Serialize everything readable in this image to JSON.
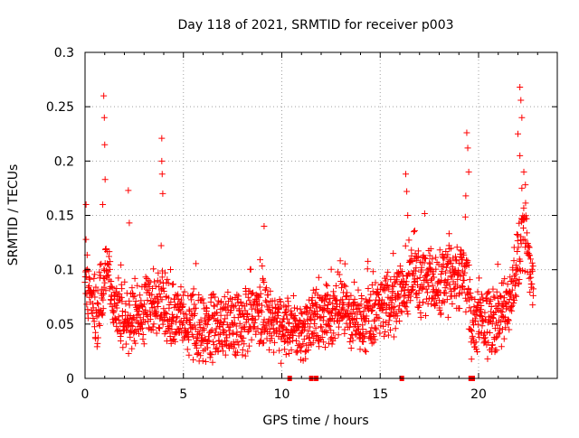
{
  "chart_data": {
    "type": "scatter",
    "title": "Day 118 of 2021, SRMTID for receiver p003",
    "xlabel": "GPS time / hours",
    "ylabel": "SRMTID / TECUs",
    "xlim": [
      0,
      24
    ],
    "ylim": [
      0,
      0.3
    ],
    "x_ticks": [
      0,
      5,
      10,
      15,
      20
    ],
    "x_tick_labels": [
      "0",
      "5",
      "10",
      "15",
      "20"
    ],
    "y_ticks": [
      0,
      0.05,
      0.1,
      0.15,
      0.2,
      0.25,
      0.3
    ],
    "y_tick_labels": [
      "0",
      "0.05",
      "0.1",
      "0.15",
      "0.2",
      "0.25",
      "0.3"
    ],
    "grid": true,
    "marker": "+",
    "color": "#ff0000",
    "zero_markers_x": [
      10.4,
      11.5,
      11.75,
      16.1,
      19.6,
      19.7
    ],
    "profile": [
      [
        0.0,
        0.09
      ],
      [
        0.3,
        0.07
      ],
      [
        0.6,
        0.058
      ],
      [
        0.9,
        0.08
      ],
      [
        1.1,
        0.11
      ],
      [
        1.4,
        0.075
      ],
      [
        1.8,
        0.06
      ],
      [
        2.2,
        0.055
      ],
      [
        2.6,
        0.06
      ],
      [
        3.0,
        0.06
      ],
      [
        3.5,
        0.062
      ],
      [
        3.9,
        0.07
      ],
      [
        4.3,
        0.06
      ],
      [
        4.8,
        0.055
      ],
      [
        5.3,
        0.05
      ],
      [
        6.0,
        0.045
      ],
      [
        7.0,
        0.05
      ],
      [
        8.0,
        0.05
      ],
      [
        9.0,
        0.06
      ],
      [
        9.4,
        0.055
      ],
      [
        10.0,
        0.045
      ],
      [
        10.8,
        0.045
      ],
      [
        11.5,
        0.05
      ],
      [
        12.0,
        0.055
      ],
      [
        13.0,
        0.065
      ],
      [
        13.5,
        0.06
      ],
      [
        14.0,
        0.05
      ],
      [
        14.5,
        0.06
      ],
      [
        15.0,
        0.065
      ],
      [
        15.5,
        0.07
      ],
      [
        16.0,
        0.075
      ],
      [
        16.5,
        0.085
      ],
      [
        17.0,
        0.09
      ],
      [
        17.5,
        0.09
      ],
      [
        18.0,
        0.085
      ],
      [
        18.5,
        0.09
      ],
      [
        19.0,
        0.095
      ],
      [
        19.4,
        0.09
      ],
      [
        19.7,
        0.04
      ],
      [
        20.0,
        0.055
      ],
      [
        20.5,
        0.05
      ],
      [
        21.0,
        0.055
      ],
      [
        21.5,
        0.07
      ],
      [
        22.0,
        0.11
      ],
      [
        22.3,
        0.13
      ],
      [
        22.7,
        0.09
      ]
    ],
    "spikes": [
      {
        "x": 0.05,
        "y": 0.16
      },
      {
        "x": 0.95,
        "y": 0.26
      },
      {
        "x": 0.98,
        "y": 0.24
      },
      {
        "x": 1.0,
        "y": 0.215
      },
      {
        "x": 1.02,
        "y": 0.183
      },
      {
        "x": 0.9,
        "y": 0.16
      },
      {
        "x": 2.2,
        "y": 0.173
      },
      {
        "x": 2.25,
        "y": 0.143
      },
      {
        "x": 3.9,
        "y": 0.221
      },
      {
        "x": 3.9,
        "y": 0.2
      },
      {
        "x": 3.92,
        "y": 0.188
      },
      {
        "x": 3.95,
        "y": 0.17
      },
      {
        "x": 9.1,
        "y": 0.14
      },
      {
        "x": 16.3,
        "y": 0.188
      },
      {
        "x": 16.35,
        "y": 0.172
      },
      {
        "x": 16.4,
        "y": 0.15
      },
      {
        "x": 19.4,
        "y": 0.226
      },
      {
        "x": 19.45,
        "y": 0.212
      },
      {
        "x": 19.5,
        "y": 0.19
      },
      {
        "x": 19.35,
        "y": 0.168
      },
      {
        "x": 22.1,
        "y": 0.268
      },
      {
        "x": 22.15,
        "y": 0.256
      },
      {
        "x": 22.2,
        "y": 0.24
      },
      {
        "x": 22.0,
        "y": 0.225
      },
      {
        "x": 22.1,
        "y": 0.205
      },
      {
        "x": 22.3,
        "y": 0.19
      },
      {
        "x": 22.2,
        "y": 0.175
      }
    ]
  }
}
